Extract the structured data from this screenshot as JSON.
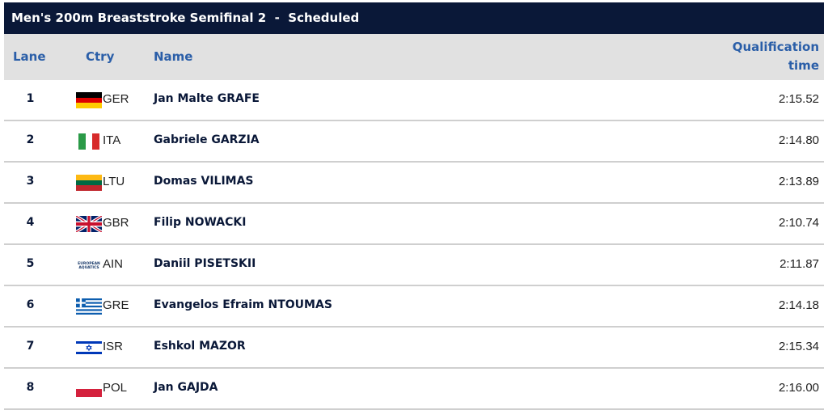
{
  "title": "Men's 200m Breaststroke Semifinal 2  -  Scheduled",
  "columns": {
    "lane": "Lane",
    "ctry": "Ctry",
    "name": "Name",
    "time_line1": "Qualification",
    "time_line2": "time"
  },
  "rows": [
    {
      "lane": "1",
      "ctry": "GER",
      "name": "Jan Malte GRAFE",
      "time": "2:15.52"
    },
    {
      "lane": "2",
      "ctry": "ITA",
      "name": "Gabriele GARZIA",
      "time": "2:14.80"
    },
    {
      "lane": "3",
      "ctry": "LTU",
      "name": "Domas VILIMAS",
      "time": "2:13.89"
    },
    {
      "lane": "4",
      "ctry": "GBR",
      "name": "Filip NOWACKI",
      "time": "2:10.74"
    },
    {
      "lane": "5",
      "ctry": "AIN",
      "name": "Daniil PISETSKII",
      "time": "2:11.87",
      "flag_text": "EUROPEAN AQUATICS"
    },
    {
      "lane": "6",
      "ctry": "GRE",
      "name": "Evangelos Efraim NTOUMAS",
      "time": "2:14.18"
    },
    {
      "lane": "7",
      "ctry": "ISR",
      "name": "Eshkol MAZOR",
      "time": "2:15.34"
    },
    {
      "lane": "8",
      "ctry": "POL",
      "name": "Jan GAJDA",
      "time": "2:16.00"
    }
  ]
}
